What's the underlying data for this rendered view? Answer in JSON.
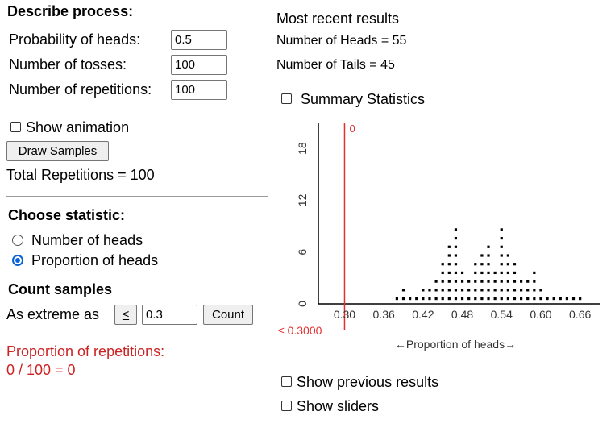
{
  "process": {
    "heading": "Describe process:",
    "prob_label": "Probability of heads:",
    "prob_value": "0.5",
    "tosses_label": "Number of tosses:",
    "tosses_value": "100",
    "reps_label": "Number of repetitions:",
    "reps_value": "100",
    "show_animation_label": "Show animation",
    "draw_button": "Draw Samples",
    "total_reps": "Total Repetitions = 100"
  },
  "statistic": {
    "heading": "Choose statistic:",
    "opt_heads": "Number of heads",
    "opt_prop": "Proportion of heads",
    "selected": "Proportion of heads"
  },
  "count": {
    "heading": "Count samples",
    "as_extreme_label": "As extreme as",
    "direction": "≤",
    "threshold": "0.3",
    "count_button": "Count",
    "result_label": "Proportion of repetitions:",
    "result_value": "0 / 100 = 0"
  },
  "results": {
    "heading": "Most recent results",
    "heads": "Number of Heads = 55",
    "tails": "Number of Tails = 45"
  },
  "summary_label": "Summary Statistics",
  "show_previous_label": "Show previous results",
  "show_sliders_label": "Show sliders",
  "chart_data": {
    "type": "scatter",
    "style": "dotplot",
    "xlabel": "←Proportion of heads→",
    "x_ticks": [
      "0.30",
      "0.36",
      "0.42",
      "0.48",
      "0.54",
      "0.60",
      "0.66"
    ],
    "y_ticks": [
      "0",
      "6",
      "12",
      "18"
    ],
    "xlim": [
      0.26,
      0.69
    ],
    "ylim": [
      0,
      21
    ],
    "cutoff": {
      "value": 0.3,
      "label": "≤ 0.3000",
      "count_label": "0",
      "color": "#e03030"
    },
    "dot_color": "#000000",
    "points": [
      {
        "x": 0.38,
        "count": 1
      },
      {
        "x": 0.39,
        "count": 2
      },
      {
        "x": 0.4,
        "count": 1
      },
      {
        "x": 0.41,
        "count": 1
      },
      {
        "x": 0.42,
        "count": 2
      },
      {
        "x": 0.43,
        "count": 2
      },
      {
        "x": 0.44,
        "count": 3
      },
      {
        "x": 0.45,
        "count": 5
      },
      {
        "x": 0.46,
        "count": 7
      },
      {
        "x": 0.47,
        "count": 9
      },
      {
        "x": 0.48,
        "count": 4
      },
      {
        "x": 0.49,
        "count": 3
      },
      {
        "x": 0.5,
        "count": 5
      },
      {
        "x": 0.51,
        "count": 6
      },
      {
        "x": 0.52,
        "count": 7
      },
      {
        "x": 0.53,
        "count": 4
      },
      {
        "x": 0.54,
        "count": 9
      },
      {
        "x": 0.55,
        "count": 6
      },
      {
        "x": 0.56,
        "count": 5
      },
      {
        "x": 0.57,
        "count": 3
      },
      {
        "x": 0.58,
        "count": 3
      },
      {
        "x": 0.59,
        "count": 4
      },
      {
        "x": 0.6,
        "count": 2
      },
      {
        "x": 0.61,
        "count": 1
      },
      {
        "x": 0.62,
        "count": 1
      },
      {
        "x": 0.63,
        "count": 1
      },
      {
        "x": 0.64,
        "count": 1
      },
      {
        "x": 0.65,
        "count": 1
      },
      {
        "x": 0.66,
        "count": 1
      }
    ]
  }
}
